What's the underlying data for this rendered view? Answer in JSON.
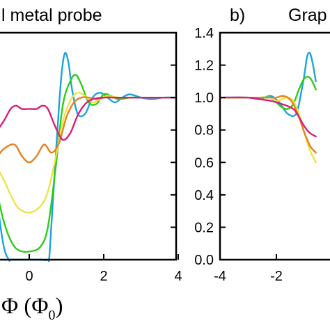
{
  "chart_data": [
    {
      "type": "line",
      "panel_label": "",
      "title": "l metal probe",
      "xlabel": "Φ (Φ",
      "xlabel_subscript": "0",
      "xlabel_close": ")",
      "xlim": [
        -1.3,
        4
      ],
      "ylim": [
        0,
        1.4
      ],
      "xticks": [
        0,
        2,
        4
      ],
      "xtick_labels": [
        "0",
        "2",
        "4"
      ],
      "yticks": [
        0,
        0.2,
        0.4,
        0.6,
        0.8,
        1.0,
        1.2,
        1.4
      ],
      "series": [
        {
          "color": "#1ba3e0",
          "x": [
            -1.3,
            -1.1,
            -0.9,
            -0.7,
            -0.55,
            -0.5,
            -0.3,
            0,
            0.3,
            0.5,
            0.55,
            0.7,
            0.85,
            0.95,
            1.05,
            1.15,
            1.3,
            1.5,
            1.7,
            1.9,
            2.1,
            2.3,
            2.5,
            2.7,
            3.0,
            3.3,
            3.6,
            4.0
          ],
          "y": [
            0.72,
            0.95,
            0.45,
            0.1,
            0.0,
            0.0,
            0.0,
            0.0,
            0.0,
            0.0,
            0.05,
            0.6,
            1.1,
            1.27,
            1.22,
            1.05,
            0.9,
            0.9,
            1.0,
            1.03,
            1.0,
            0.97,
            1.0,
            1.02,
            1.0,
            0.99,
            1.0,
            1.0
          ]
        },
        {
          "color": "#2ecc1a",
          "x": [
            -1.3,
            -1.1,
            -0.9,
            -0.7,
            -0.5,
            -0.3,
            0,
            0.3,
            0.5,
            0.7,
            0.9,
            1.1,
            1.25,
            1.4,
            1.6,
            1.8,
            2.0,
            2.2,
            2.4,
            2.7,
            3.0,
            3.4,
            4.0
          ],
          "y": [
            0.7,
            0.62,
            0.45,
            0.25,
            0.12,
            0.06,
            0.05,
            0.08,
            0.2,
            0.55,
            0.95,
            1.1,
            1.14,
            1.08,
            0.97,
            0.96,
            1.02,
            1.01,
            0.99,
            1.0,
            1.0,
            1.0,
            1.0
          ]
        },
        {
          "color": "#f0e24a",
          "x": [
            -1.3,
            -1.0,
            -0.7,
            -0.5,
            -0.3,
            0,
            0.3,
            0.5,
            0.7,
            0.9,
            1.1,
            1.3,
            1.5,
            1.7,
            1.9,
            2.1,
            2.4,
            2.8,
            3.2,
            4.0
          ],
          "y": [
            0.7,
            0.62,
            0.5,
            0.4,
            0.32,
            0.29,
            0.33,
            0.42,
            0.62,
            0.85,
            0.98,
            1.03,
            1.01,
            0.97,
            0.99,
            1.01,
            1.0,
            1.0,
            1.0,
            1.0
          ]
        },
        {
          "color": "#e8801e",
          "x": [
            -1.3,
            -1.0,
            -0.7,
            -0.4,
            -0.2,
            0,
            0.2,
            0.4,
            0.6,
            0.8,
            1.0,
            1.2,
            1.4,
            1.6,
            1.8,
            2.0,
            2.3,
            2.7,
            3.2,
            4.0
          ],
          "y": [
            0.62,
            0.6,
            0.68,
            0.71,
            0.64,
            0.6,
            0.64,
            0.71,
            0.66,
            0.72,
            0.88,
            0.97,
            1.0,
            1.0,
            0.99,
            1.0,
            1.0,
            1.0,
            1.0,
            1.0
          ]
        },
        {
          "color": "#d81e78",
          "x": [
            -1.3,
            -1.0,
            -0.7,
            -0.5,
            -0.35,
            -0.2,
            0,
            0.2,
            0.35,
            0.5,
            0.7,
            0.9,
            1.1,
            1.3,
            1.5,
            1.7,
            2.0,
            2.4,
            2.8,
            3.2,
            4.0
          ],
          "y": [
            0.74,
            0.76,
            0.85,
            0.93,
            0.95,
            0.93,
            0.93,
            0.93,
            0.95,
            0.93,
            0.82,
            0.74,
            0.78,
            0.89,
            0.96,
            0.99,
            1.0,
            1.0,
            1.0,
            1.0,
            1.0
          ]
        }
      ]
    },
    {
      "type": "line",
      "panel_label": "b)",
      "title": "Grap",
      "xlabel": "",
      "xlim": [
        -4,
        4
      ],
      "ylim": [
        0,
        1.4
      ],
      "xticks": [
        -4,
        -2
      ],
      "xtick_labels": [
        "-4",
        "-2"
      ],
      "yticks": [
        0.0,
        0.2,
        0.4,
        0.6,
        0.8,
        1.0,
        1.2,
        1.4
      ],
      "ytick_labels": [
        "0.0",
        "0.2",
        "0.4",
        "0.6",
        "0.8",
        "1.0",
        "1.2",
        "1.4"
      ],
      "series": [
        {
          "color": "#1ba3e0",
          "x": [
            -4.0,
            -3.0,
            -2.6,
            -2.2,
            -1.9,
            -1.6,
            -1.3,
            -1.1,
            -1.0,
            -0.9,
            -0.8,
            -0.7,
            -0.6
          ],
          "y": [
            1.0,
            1.0,
            0.99,
            1.01,
            0.97,
            0.9,
            0.9,
            1.05,
            1.15,
            1.26,
            1.27,
            1.2,
            1.1
          ]
        },
        {
          "color": "#2ecc1a",
          "x": [
            -4.0,
            -3.0,
            -2.6,
            -2.2,
            -2.0,
            -1.8,
            -1.6,
            -1.4,
            -1.2,
            -1.0,
            -0.8,
            -0.6
          ],
          "y": [
            1.0,
            1.0,
            1.0,
            1.0,
            0.97,
            0.94,
            0.93,
            0.96,
            1.05,
            1.12,
            1.12,
            1.05
          ]
        },
        {
          "color": "#f0e24a",
          "x": [
            -4.0,
            -3.0,
            -2.6,
            -2.2,
            -2.0,
            -1.8,
            -1.6,
            -1.4,
            -1.2,
            -1.0,
            -0.8,
            -0.6
          ],
          "y": [
            1.0,
            1.0,
            1.0,
            1.0,
            0.98,
            0.99,
            1.0,
            0.98,
            0.9,
            0.78,
            0.67,
            0.6
          ]
        },
        {
          "color": "#e8801e",
          "x": [
            -4.0,
            -3.0,
            -2.6,
            -2.2,
            -2.0,
            -1.8,
            -1.6,
            -1.4,
            -1.2,
            -1.0,
            -0.8,
            -0.6
          ],
          "y": [
            1.0,
            1.0,
            1.0,
            1.0,
            1.0,
            1.01,
            1.0,
            0.96,
            0.88,
            0.78,
            0.7,
            0.66
          ]
        },
        {
          "color": "#d81e78",
          "x": [
            -4.0,
            -3.0,
            -2.6,
            -2.2,
            -1.8,
            -1.4,
            -1.2,
            -1.0,
            -0.8,
            -0.6
          ],
          "y": [
            1.0,
            1.0,
            0.99,
            0.98,
            0.96,
            0.93,
            0.88,
            0.82,
            0.78,
            0.76
          ]
        }
      ]
    }
  ]
}
